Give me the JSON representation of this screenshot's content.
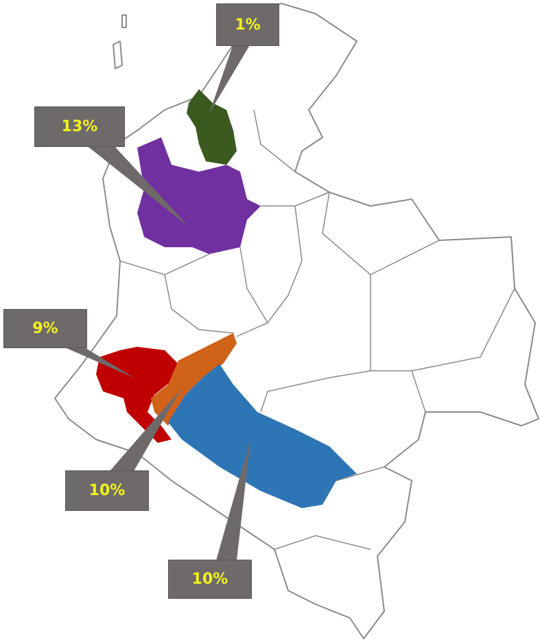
{
  "colors": {
    "outline": "#8a8a8a",
    "label_bg": "#6f6a6a",
    "label_text": "#f3f31c",
    "green": "#3b5a1f",
    "purple": "#7030a0",
    "red": "#c00000",
    "orange": "#d0621a",
    "blue": "#2e75b6"
  },
  "regions": [
    {
      "id": "green",
      "label": "1%"
    },
    {
      "id": "purple",
      "label": "13%"
    },
    {
      "id": "red",
      "label": "9%"
    },
    {
      "id": "orange",
      "label": "10%"
    },
    {
      "id": "blue",
      "label": "10%"
    }
  ]
}
